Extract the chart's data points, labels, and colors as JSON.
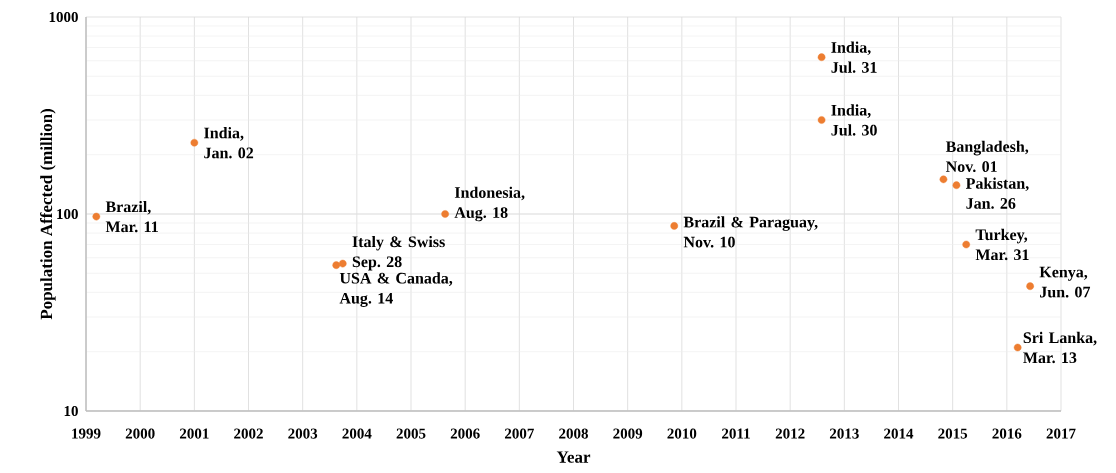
{
  "chart_data": {
    "type": "scatter",
    "xlabel": "Year",
    "ylabel": "Population Affected (million)",
    "x": [
      1999.19,
      2001.0,
      2003.62,
      2003.74,
      2005.63,
      2009.86,
      2012.58,
      2012.58,
      2014.83,
      2015.07,
      2015.25,
      2016.43,
      2016.2
    ],
    "values": [
      97,
      230,
      55,
      56,
      100,
      87,
      300,
      625,
      150,
      140,
      70,
      43,
      21
    ],
    "color": "#ed7d31",
    "marker": "circle",
    "log": "y",
    "grid": true,
    "xlim": [
      1999,
      2017
    ],
    "ylim": [
      10,
      1000
    ],
    "xticks": [
      1999,
      2000,
      2001,
      2002,
      2003,
      2004,
      2005,
      2006,
      2007,
      2008,
      2009,
      2010,
      2011,
      2012,
      2013,
      2014,
      2015,
      2016,
      2017
    ],
    "yticks": [
      10,
      100,
      1000
    ],
    "annotations": [
      {
        "text": "Brazil, Mar. 11",
        "x": 1999.19,
        "y": 97
      },
      {
        "text": "India, Jan. 02",
        "x": 2001.0,
        "y": 230
      },
      {
        "text": "USA & Canada, Aug. 14",
        "x": 2003.62,
        "y": 55
      },
      {
        "text": "Italy & Swiss Sep. 28",
        "x": 2003.74,
        "y": 56
      },
      {
        "text": "Indonesia, Aug. 18",
        "x": 2005.63,
        "y": 100
      },
      {
        "text": "Brazil & Paraguay, Nov. 10",
        "x": 2009.86,
        "y": 87
      },
      {
        "text": "India, Jul. 30",
        "x": 2012.58,
        "y": 300
      },
      {
        "text": "India, Jul. 31",
        "x": 2012.58,
        "y": 625
      },
      {
        "text": "Bangladesh, Nov. 01",
        "x": 2014.83,
        "y": 150
      },
      {
        "text": "Pakistan, Jan. 26",
        "x": 2015.07,
        "y": 140
      },
      {
        "text": "Turkey, Mar. 31",
        "x": 2015.25,
        "y": 70
      },
      {
        "text": "Kenya, Jun. 07",
        "x": 2016.43,
        "y": 43
      },
      {
        "text": "Sri Lanka, Mar. 13",
        "x": 2016.2,
        "y": 21
      }
    ]
  }
}
